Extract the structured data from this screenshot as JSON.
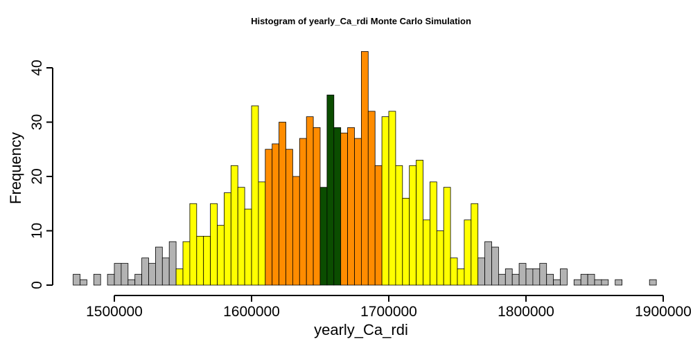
{
  "chart_data": {
    "type": "bar",
    "title": "Histogram of  yearly_Ca_rdi  Monte Carlo Simulation",
    "xlabel": "yearly_Ca_rdi",
    "ylabel": "Frequency",
    "xlim": [
      1470000,
      1900000
    ],
    "ylim": [
      0,
      43
    ],
    "x_ticks": [
      1500000,
      1600000,
      1700000,
      1800000,
      1900000
    ],
    "x_tick_labels": [
      "1500000",
      "1600000",
      "1700000",
      "1800000",
      "1900000"
    ],
    "y_ticks": [
      0,
      10,
      20,
      30,
      40
    ],
    "y_tick_labels": [
      "0",
      "10",
      "20",
      "30",
      "40"
    ],
    "bin_width": 5000,
    "bin_start": 1470000,
    "counts": [
      2,
      1,
      0,
      2,
      0,
      2,
      4,
      4,
      1,
      2,
      5,
      4,
      7,
      5,
      8,
      3,
      8,
      15,
      9,
      9,
      15,
      11,
      17,
      22,
      18,
      14,
      33,
      19,
      25,
      26,
      30,
      25,
      20,
      27,
      31,
      29,
      18,
      35,
      29,
      28,
      29,
      27,
      43,
      32,
      22,
      31,
      32,
      22,
      16,
      22,
      23,
      12,
      19,
      10,
      18,
      5,
      3,
      12,
      15,
      5,
      8,
      7,
      2,
      3,
      2,
      4,
      3,
      3,
      4,
      2,
      1,
      3,
      0,
      1,
      2,
      2,
      1,
      1,
      0,
      1,
      0,
      0,
      0,
      0,
      1
    ],
    "color_ranges": [
      {
        "from": 1470000,
        "to": 1545000,
        "color": "#b3b3b3"
      },
      {
        "from": 1545000,
        "to": 1610000,
        "color": "#ffff00"
      },
      {
        "from": 1610000,
        "to": 1650000,
        "color": "#ff8c00"
      },
      {
        "from": 1650000,
        "to": 1665000,
        "color": "#0b4d00"
      },
      {
        "from": 1665000,
        "to": 1695000,
        "color": "#ff8c00"
      },
      {
        "from": 1695000,
        "to": 1765000,
        "color": "#ffff00"
      },
      {
        "from": 1765000,
        "to": 1895000,
        "color": "#b3b3b3"
      }
    ],
    "bar_outline_color": "#000000"
  }
}
